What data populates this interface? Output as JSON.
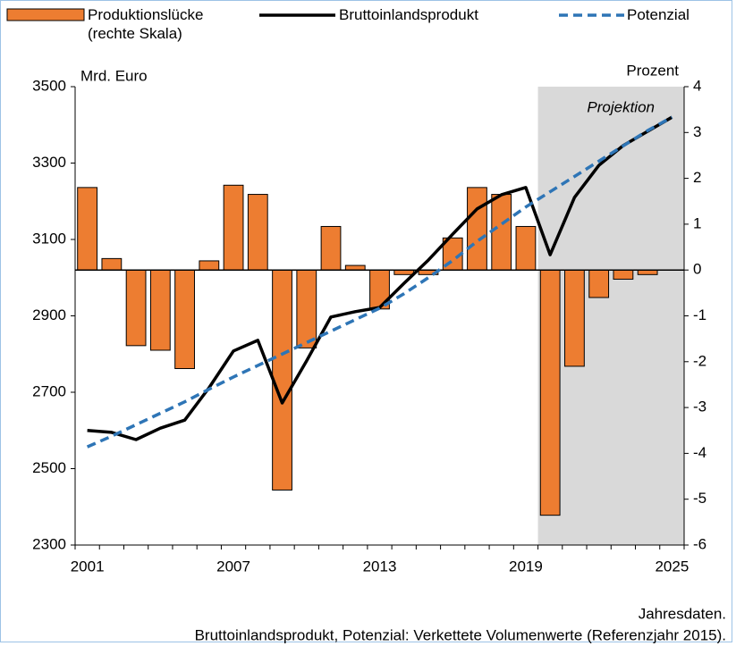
{
  "chart_data": {
    "type": "combo",
    "y_label": "Mrd. Euro",
    "y2_label": "Prozent",
    "annotation": "Projektion",
    "notes": [
      "Jahresdaten.",
      "Bruttoinlandsprodukt, Potenzial: Verkettete Volumenwerte (Referenzjahr 2015)."
    ],
    "categories": [
      "2001",
      null,
      null,
      null,
      null,
      null,
      "2007",
      null,
      null,
      null,
      null,
      null,
      "2013",
      null,
      null,
      null,
      null,
      null,
      "2019",
      null,
      null,
      null,
      null,
      null,
      "2025"
    ],
    "ylim": [
      2300,
      3500
    ],
    "yticks": [
      2300,
      2500,
      2700,
      2900,
      3100,
      3300,
      3500
    ],
    "y2lim": [
      -6,
      4
    ],
    "y2ticks": [
      -6,
      -5,
      -4,
      -3,
      -2,
      -1,
      0,
      1,
      2,
      3,
      4
    ],
    "series": [
      {
        "name": "Produktionslücke (rechte Skala)",
        "type": "bar",
        "axis": "y2",
        "color": "#ED7D31",
        "values": [
          1.8,
          0.25,
          -1.65,
          -1.75,
          -2.15,
          0.2,
          1.85,
          1.65,
          -4.8,
          -1.7,
          0.95,
          0.1,
          -0.85,
          -0.1,
          -0.1,
          0.7,
          1.8,
          1.65,
          0.95,
          -5.35,
          -2.1,
          -0.6,
          -0.2,
          -0.1,
          0
        ]
      },
      {
        "name": "Bruttoinlandsprodukt",
        "type": "line",
        "color": "#000000",
        "values": [
          2600,
          2595,
          2576,
          2606,
          2627,
          2712,
          2808,
          2836,
          2672,
          2782,
          2897,
          2911,
          2922,
          2985,
          3046,
          3114,
          3180,
          3217,
          3236,
          3060,
          3210,
          3294,
          3346,
          3383,
          3420
        ]
      },
      {
        "name": "Potenzial",
        "type": "dashed",
        "color": "#2E75B6",
        "values": [
          2557,
          2585,
          2615,
          2645,
          2675,
          2708,
          2740,
          2770,
          2800,
          2830,
          2860,
          2890,
          2920,
          2958,
          3000,
          3045,
          3095,
          3140,
          3185,
          3225,
          3265,
          3305,
          3345,
          3385,
          3420
        ]
      }
    ]
  }
}
